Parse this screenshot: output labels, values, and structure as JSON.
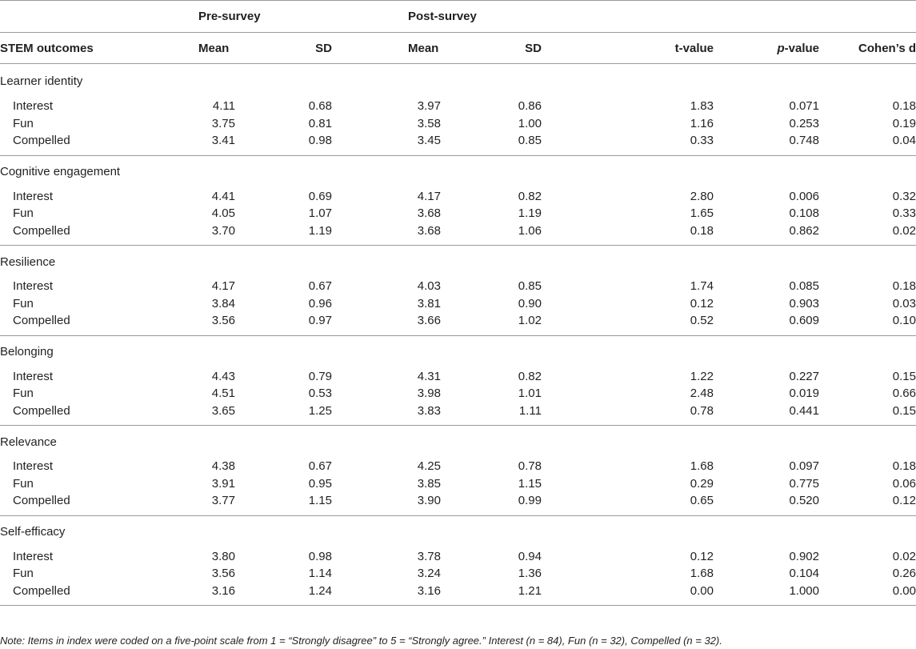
{
  "header": {
    "pre_survey": "Pre-survey",
    "post_survey": "Post-survey",
    "outcomes": "STEM outcomes",
    "mean": "Mean",
    "sd": "SD",
    "t_value": "t-value",
    "p_letter": "p",
    "p_suffix": "-value",
    "cohens_d": "Cohen’s d"
  },
  "sections": [
    {
      "title": "Learner identity",
      "rows": [
        [
          "Interest",
          "4.11",
          "0.68",
          "3.97",
          "0.86",
          "1.83",
          "0.071",
          "0.18"
        ],
        [
          "Fun",
          "3.75",
          "0.81",
          "3.58",
          "1.00",
          "1.16",
          "0.253",
          "0.19"
        ],
        [
          "Compelled",
          "3.41",
          "0.98",
          "3.45",
          "0.85",
          "0.33",
          "0.748",
          "0.04"
        ]
      ]
    },
    {
      "title": "Cognitive engagement",
      "rows": [
        [
          "Interest",
          "4.41",
          "0.69",
          "4.17",
          "0.82",
          "2.80",
          "0.006",
          "0.32"
        ],
        [
          "Fun",
          "4.05",
          "1.07",
          "3.68",
          "1.19",
          "1.65",
          "0.108",
          "0.33"
        ],
        [
          "Compelled",
          "3.70",
          "1.19",
          "3.68",
          "1.06",
          "0.18",
          "0.862",
          "0.02"
        ]
      ]
    },
    {
      "title": "Resilience",
      "rows": [
        [
          "Interest",
          "4.17",
          "0.67",
          "4.03",
          "0.85",
          "1.74",
          "0.085",
          "0.18"
        ],
        [
          "Fun",
          "3.84",
          "0.96",
          "3.81",
          "0.90",
          "0.12",
          "0.903",
          "0.03"
        ],
        [
          "Compelled",
          "3.56",
          "0.97",
          "3.66",
          "1.02",
          "0.52",
          "0.609",
          "0.10"
        ]
      ]
    },
    {
      "title": "Belonging",
      "rows": [
        [
          "Interest",
          "4.43",
          "0.79",
          "4.31",
          "0.82",
          "1.22",
          "0.227",
          "0.15"
        ],
        [
          "Fun",
          "4.51",
          "0.53",
          "3.98",
          "1.01",
          "2.48",
          "0.019",
          "0.66"
        ],
        [
          "Compelled",
          "3.65",
          "1.25",
          "3.83",
          "1.11",
          "0.78",
          "0.441",
          "0.15"
        ]
      ]
    },
    {
      "title": "Relevance",
      "rows": [
        [
          "Interest",
          "4.38",
          "0.67",
          "4.25",
          "0.78",
          "1.68",
          "0.097",
          "0.18"
        ],
        [
          "Fun",
          "3.91",
          "0.95",
          "3.85",
          "1.15",
          "0.29",
          "0.775",
          "0.06"
        ],
        [
          "Compelled",
          "3.77",
          "1.15",
          "3.90",
          "0.99",
          "0.65",
          "0.520",
          "0.12"
        ]
      ]
    },
    {
      "title": "Self-efficacy",
      "rows": [
        [
          "Interest",
          "3.80",
          "0.98",
          "3.78",
          "0.94",
          "0.12",
          "0.902",
          "0.02"
        ],
        [
          "Fun",
          "3.56",
          "1.14",
          "3.24",
          "1.36",
          "1.68",
          "0.104",
          "0.26"
        ],
        [
          "Compelled",
          "3.16",
          "1.24",
          "3.16",
          "1.21",
          "0.00",
          "1.000",
          "0.00"
        ]
      ]
    }
  ],
  "note": "Note: Items in index were coded on a five-point scale from 1 = “Strongly disagree” to 5 = “Strongly agree.” Interest (n = 84), Fun (n = 32), Compelled (n = 32)."
}
